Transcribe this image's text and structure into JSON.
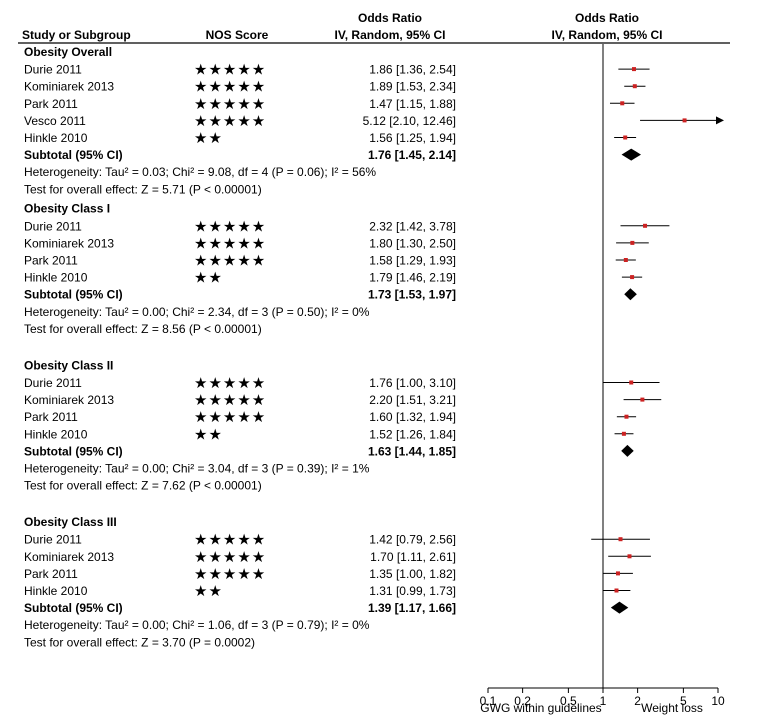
{
  "headers": {
    "study": "Study or Subgroup",
    "nos": "NOS Score",
    "or_top": "Odds Ratio",
    "or_bottom": "IV, Random, 95% CI",
    "plot_top": "Odds Ratio",
    "plot_bottom": "IV, Random, 95% CI"
  },
  "colors": {
    "estimate": "#cc2222",
    "line": "#000000",
    "ci": "#000000"
  },
  "chart_data": {
    "type": "forest",
    "scale": "log",
    "xlim": [
      0.1,
      10
    ],
    "null_value": 1,
    "x_ticks": [
      {
        "value": 0.1,
        "label": "0.1"
      },
      {
        "value": 0.2,
        "label": "0.2"
      },
      {
        "value": 0.5,
        "label": "0.5"
      },
      {
        "value": 1,
        "label": "1"
      },
      {
        "value": 2,
        "label": "2"
      },
      {
        "value": 5,
        "label": "5"
      },
      {
        "value": 10,
        "label": "10"
      }
    ],
    "x_label_left": "GWG within guidelines",
    "x_label_right": "Weight loss",
    "groups": [
      {
        "name": "Obesity Overall",
        "studies": [
          {
            "study": "Durie 2011",
            "nos": "★★★★★",
            "or": 1.86,
            "lower": 1.36,
            "upper": 2.54,
            "text": "1.86 [1.36, 2.54]"
          },
          {
            "study": "Kominiarek 2013",
            "nos": "★★★★★",
            "or": 1.89,
            "lower": 1.53,
            "upper": 2.34,
            "text": "1.89 [1.53, 2.34]"
          },
          {
            "study": "Park 2011",
            "nos": "★★★★★",
            "or": 1.47,
            "lower": 1.15,
            "upper": 1.88,
            "text": "1.47 [1.15, 1.88]"
          },
          {
            "study": "Vesco 2011",
            "nos": "★★★★★",
            "or": 5.12,
            "lower": 2.1,
            "upper": 12.46,
            "text": "5.12 [2.10, 12.46]"
          },
          {
            "study": "Hinkle 2010",
            "nos": "★★",
            "or": 1.56,
            "lower": 1.25,
            "upper": 1.94,
            "text": "1.56 [1.25, 1.94]"
          }
        ],
        "subtotal": {
          "label": "Subtotal (95% CI)",
          "or": 1.76,
          "lower": 1.45,
          "upper": 2.14,
          "text": "1.76 [1.45, 2.14]"
        },
        "heterogeneity": "Heterogeneity: Tau² = 0.03; Chi² = 9.08, df = 4 (P = 0.06); I² = 56%",
        "overall_effect": "Test for overall effect: Z = 5.71 (P < 0.00001)"
      },
      {
        "name": "Obesity Class I",
        "studies": [
          {
            "study": "Durie 2011",
            "nos": "★★★★★",
            "or": 2.32,
            "lower": 1.42,
            "upper": 3.78,
            "text": "2.32 [1.42, 3.78]"
          },
          {
            "study": "Kominiarek 2013",
            "nos": "★★★★★",
            "or": 1.8,
            "lower": 1.3,
            "upper": 2.5,
            "text": "1.80 [1.30, 2.50]"
          },
          {
            "study": "Park 2011",
            "nos": "★★★★★",
            "or": 1.58,
            "lower": 1.29,
            "upper": 1.93,
            "text": "1.58 [1.29, 1.93]"
          },
          {
            "study": "Hinkle 2010",
            "nos": "★★",
            "or": 1.79,
            "lower": 1.46,
            "upper": 2.19,
            "text": "1.79 [1.46, 2.19]"
          }
        ],
        "subtotal": {
          "label": "Subtotal (95% CI)",
          "or": 1.73,
          "lower": 1.53,
          "upper": 1.97,
          "text": "1.73 [1.53, 1.97]"
        },
        "heterogeneity": "Heterogeneity: Tau² = 0.00; Chi² = 2.34, df = 3 (P = 0.50); I² = 0%",
        "overall_effect": "Test for overall effect: Z = 8.56 (P < 0.00001)"
      },
      {
        "name": "Obesity Class II",
        "studies": [
          {
            "study": "Durie 2011",
            "nos": "★★★★★",
            "or": 1.76,
            "lower": 1.0,
            "upper": 3.1,
            "text": "1.76 [1.00, 3.10]"
          },
          {
            "study": "Kominiarek 2013",
            "nos": "★★★★★",
            "or": 2.2,
            "lower": 1.51,
            "upper": 3.21,
            "text": "2.20 [1.51, 3.21]"
          },
          {
            "study": "Park 2011",
            "nos": "★★★★★",
            "or": 1.6,
            "lower": 1.32,
            "upper": 1.94,
            "text": "1.60 [1.32, 1.94]"
          },
          {
            "study": "Hinkle 2010",
            "nos": "★★",
            "or": 1.52,
            "lower": 1.26,
            "upper": 1.84,
            "text": "1.52 [1.26, 1.84]"
          }
        ],
        "subtotal": {
          "label": "Subtotal (95% CI)",
          "or": 1.63,
          "lower": 1.44,
          "upper": 1.85,
          "text": "1.63 [1.44, 1.85]"
        },
        "heterogeneity": "Heterogeneity: Tau² = 0.00; Chi² = 3.04, df = 3 (P = 0.39); I² = 1%",
        "overall_effect": "Test for overall effect: Z = 7.62 (P < 0.00001)"
      },
      {
        "name": "Obesity Class III",
        "studies": [
          {
            "study": "Durie 2011",
            "nos": "★★★★★",
            "or": 1.42,
            "lower": 0.79,
            "upper": 2.56,
            "text": "1.42 [0.79, 2.56]"
          },
          {
            "study": "Kominiarek 2013",
            "nos": "★★★★★",
            "or": 1.7,
            "lower": 1.11,
            "upper": 2.61,
            "text": "1.70 [1.11, 2.61]"
          },
          {
            "study": "Park 2011",
            "nos": "★★★★★",
            "or": 1.35,
            "lower": 1.0,
            "upper": 1.82,
            "text": "1.35 [1.00, 1.82]"
          },
          {
            "study": "Hinkle 2010",
            "nos": "★★",
            "or": 1.31,
            "lower": 0.99,
            "upper": 1.73,
            "text": "1.31 [0.99, 1.73]"
          }
        ],
        "subtotal": {
          "label": "Subtotal (95% CI)",
          "or": 1.39,
          "lower": 1.17,
          "upper": 1.66,
          "text": "1.39 [1.17, 1.66]"
        },
        "heterogeneity": "Heterogeneity: Tau² = 0.00; Chi² = 1.06, df = 3 (P = 0.79); I² = 0%",
        "overall_effect": "Test for overall effect: Z = 3.70 (P = 0.0002)"
      }
    ]
  }
}
